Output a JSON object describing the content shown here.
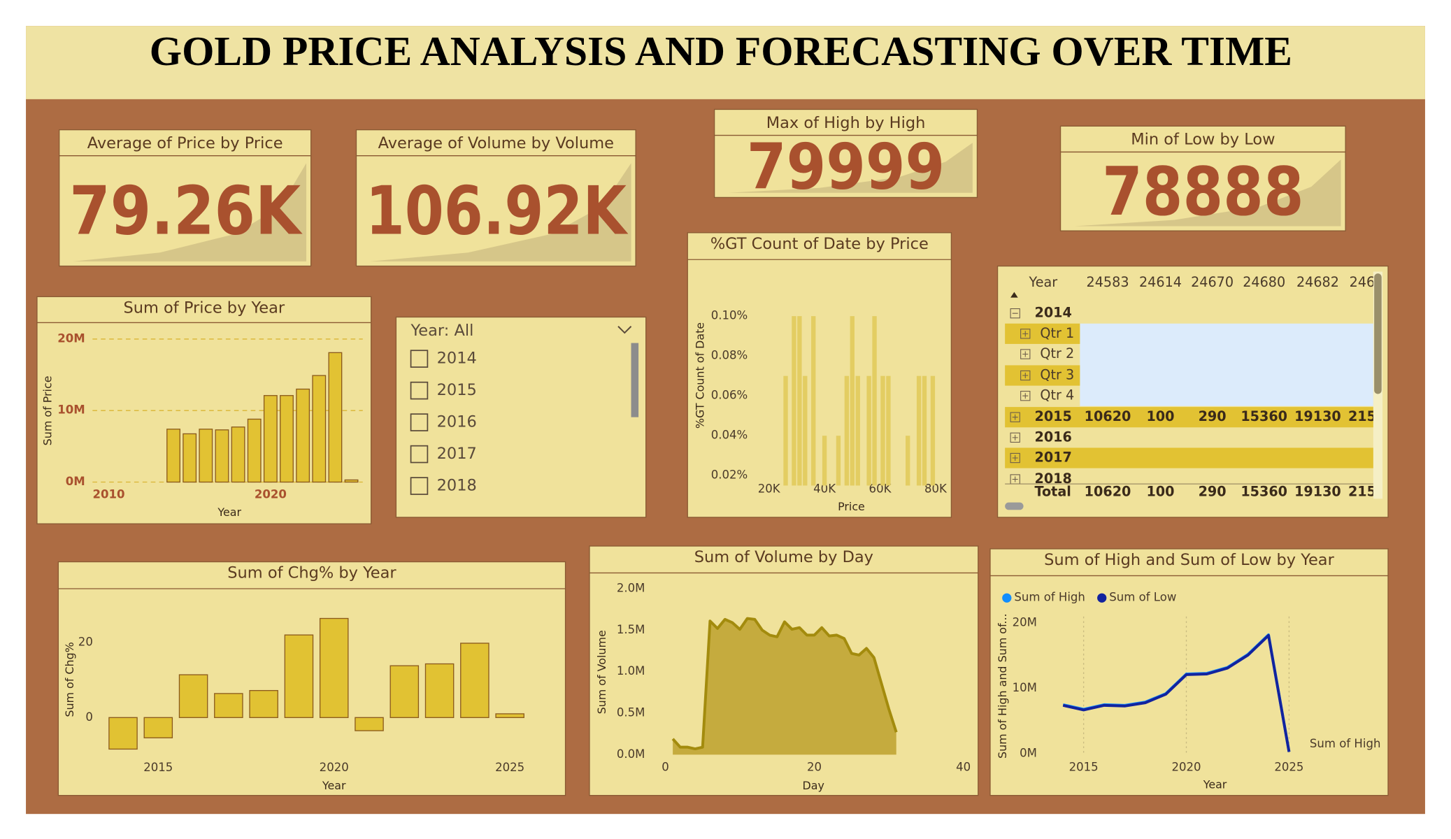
{
  "title": "GOLD PRICE ANALYSIS AND FORECASTING OVER TIME",
  "cards": [
    {
      "title": "Average of Price by Price",
      "value": "79.26K"
    },
    {
      "title": "Average of Volume by Volume",
      "value": "106.92K"
    },
    {
      "title": "Max of High by High",
      "value": 79999
    },
    {
      "title": "Min of Low by Low",
      "value": 78888
    }
  ],
  "slicer": {
    "header": "Year: All",
    "items": [
      2014,
      2015,
      2016,
      2017,
      2018
    ]
  },
  "matrix": {
    "columns": [
      "Year",
      24583,
      24614,
      24670,
      24680,
      24682,
      246
    ],
    "rows": [
      {
        "label": "2014",
        "cells": []
      },
      {
        "label": "Qtr 1",
        "cells": []
      },
      {
        "label": "Qtr 2",
        "cells": []
      },
      {
        "label": "Qtr 3",
        "cells": []
      },
      {
        "label": "Qtr 4",
        "cells": []
      },
      {
        "label": "2015",
        "cells": [
          10620,
          100,
          290,
          15360,
          19130,
          215
        ]
      },
      {
        "label": "2016",
        "cells": []
      },
      {
        "label": "2017",
        "cells": []
      },
      {
        "label": "2018",
        "cells": []
      }
    ],
    "total": {
      "label": "Total",
      "cells": [
        10620,
        100,
        290,
        15360,
        19130,
        215
      ]
    }
  },
  "chart_data": [
    {
      "type": "bar",
      "title": "Sum of Price by Year",
      "x_label": "Year",
      "y_label": "Sum of Price",
      "x": [
        2014,
        2015,
        2016,
        2017,
        2018,
        2019,
        2020,
        2021,
        2022,
        2023,
        2024,
        2025
      ],
      "values": [
        7400000,
        6750000,
        7400000,
        7300000,
        7700000,
        8800000,
        12100000,
        12100000,
        13000000,
        14900000,
        18100000,
        300000
      ],
      "color": "#e2c233",
      "xlim": [
        2009,
        2025.7
      ],
      "ylim": [
        0,
        21000000
      ],
      "xticks": [
        2010,
        2020
      ],
      "yticks": [
        {
          "value": 0,
          "label": "0M"
        },
        {
          "value": 10000000,
          "label": "10M"
        },
        {
          "value": 20000000,
          "label": "20M"
        }
      ],
      "grid": "y"
    },
    {
      "type": "bar",
      "title": "%GT Count of Date by Price",
      "x_label": "Price",
      "y_label": "%GT Count of Date",
      "x": [
        26000,
        29000,
        31000,
        33000,
        36000,
        40000,
        45000,
        48000,
        50000,
        52000,
        56000,
        58000,
        61000,
        63000,
        70000,
        74000,
        76000,
        79000
      ],
      "values": [
        0.07,
        0.1,
        0.1,
        0.07,
        0.1,
        0.04,
        0.04,
        0.07,
        0.1,
        0.07,
        0.07,
        0.1,
        0.07,
        0.07,
        0.04,
        0.07,
        0.07,
        0.07
      ],
      "color": "#e3cd62",
      "xlim": [
        15000,
        82000
      ],
      "ylim": [
        0.015,
        0.11
      ],
      "xticks": [
        {
          "value": 20000,
          "label": "20K"
        },
        {
          "value": 40000,
          "label": "40K"
        },
        {
          "value": 60000,
          "label": "60K"
        },
        {
          "value": 80000,
          "label": "80K"
        }
      ],
      "yticks": [
        {
          "value": 0.02,
          "label": "0.02%"
        },
        {
          "value": 0.04,
          "label": "0.04%"
        },
        {
          "value": 0.06,
          "label": "0.06%"
        },
        {
          "value": 0.08,
          "label": "0.08%"
        },
        {
          "value": 0.1,
          "label": "0.10%"
        }
      ],
      "grid": false
    },
    {
      "type": "bar",
      "title": "Sum of Chg% by Year",
      "x_label": "Year",
      "y_label": "Sum of Chg%",
      "x": [
        2014,
        2015,
        2016,
        2017,
        2018,
        2019,
        2020,
        2021,
        2022,
        2023,
        2024,
        2025
      ],
      "values": [
        -8.4,
        -5.4,
        11.4,
        6.4,
        7.2,
        22,
        26.4,
        -3.5,
        13.8,
        14.3,
        19.8,
        1
      ],
      "color": "#e1c233",
      "xlim": [
        2013.3,
        2025.8
      ],
      "ylim": [
        -10,
        30
      ],
      "xticks": [
        2015,
        2020,
        2025
      ],
      "yticks": [
        0,
        20
      ],
      "grid": false
    },
    {
      "type": "area",
      "title": "Sum of Volume by Day",
      "x_label": "Day",
      "y_label": "Sum of Volume",
      "x": [
        1,
        2,
        3,
        4,
        5,
        6,
        7,
        8,
        9,
        10,
        11,
        12,
        13,
        14,
        15,
        16,
        17,
        18,
        19,
        20,
        21,
        22,
        23,
        24,
        25,
        26,
        27,
        28,
        29,
        30,
        31
      ],
      "values": [
        190000,
        90000,
        90000,
        70000,
        90000,
        1610000,
        1520000,
        1630000,
        1590000,
        1510000,
        1640000,
        1630000,
        1500000,
        1440000,
        1420000,
        1600000,
        1510000,
        1530000,
        1440000,
        1440000,
        1530000,
        1430000,
        1440000,
        1400000,
        1220000,
        1200000,
        1280000,
        1170000,
        860000,
        550000,
        270000
      ],
      "color": "#c5ab3e",
      "xlim": [
        0,
        40
      ],
      "ylim": [
        0,
        2100000
      ],
      "xticks": [
        0,
        20,
        40
      ],
      "yticks": [
        {
          "value": 0,
          "label": "0.0M"
        },
        {
          "value": 500000,
          "label": "0.5M"
        },
        {
          "value": 1000000,
          "label": "1.0M"
        },
        {
          "value": 1500000,
          "label": "1.5M"
        },
        {
          "value": 2000000,
          "label": "2.0M"
        }
      ],
      "grid": false
    },
    {
      "type": "line",
      "title": "Sum of High and Sum of Low by Year",
      "x_label": "Year",
      "y_label": "Sum of High and Sum of...",
      "annotation": "Sum of High",
      "x": [
        2014,
        2015,
        2016,
        2017,
        2018,
        2019,
        2020,
        2021,
        2022,
        2023,
        2024,
        2025
      ],
      "series": [
        {
          "name": "Sum of High",
          "color": "#118dff",
          "values": [
            7500000,
            6800000,
            7500000,
            7400000,
            7900000,
            9200000,
            12200000,
            12300000,
            13200000,
            15200000,
            18200000,
            300000
          ]
        },
        {
          "name": "Sum of Low",
          "color": "#12239e",
          "values": [
            7400000,
            6700000,
            7400000,
            7300000,
            7800000,
            9100000,
            12100000,
            12200000,
            13100000,
            15100000,
            18100000,
            280000
          ]
        }
      ],
      "xlim": [
        2013,
        2026
      ],
      "ylim": [
        0,
        21000000
      ],
      "xticks": [
        2015,
        2020,
        2025
      ],
      "yticks": [
        {
          "value": 0,
          "label": "0M"
        },
        {
          "value": 10000000,
          "label": "10M"
        },
        {
          "value": 20000000,
          "label": "20M"
        }
      ],
      "grid": "x",
      "legend": "top-left"
    }
  ]
}
